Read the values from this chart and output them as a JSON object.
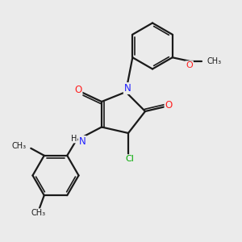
{
  "bg_color": "#ebebeb",
  "bond_color": "#1a1a1a",
  "N_color": "#2020ff",
  "O_color": "#ff2020",
  "Cl_color": "#00aa00",
  "text_color": "#1a1a1a",
  "bond_width": 1.6,
  "fig_w": 3.0,
  "fig_h": 3.0,
  "dpi": 100,
  "xlim": [
    0,
    10
  ],
  "ylim": [
    0,
    10
  ]
}
